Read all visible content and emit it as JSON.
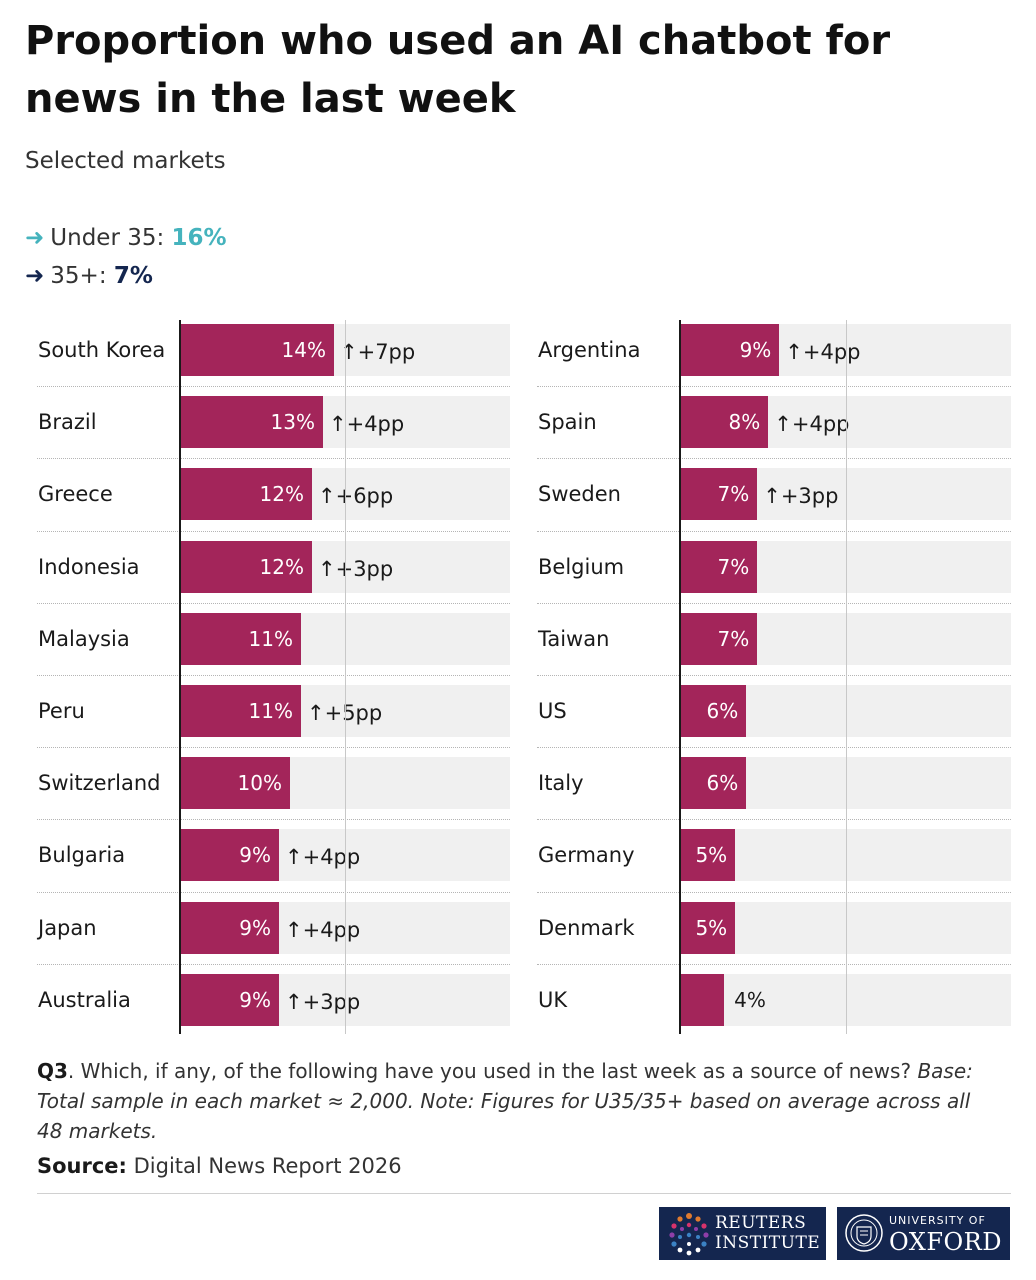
{
  "title": "Proportion who used an AI chatbot for news in the last week",
  "subtitle": "Selected markets",
  "stats": [
    {
      "arrow": "➜",
      "label": "Under 35: ",
      "value": "16%",
      "color": "#45b3bd"
    },
    {
      "arrow": "➜",
      "label": "35+: ",
      "value": "7%",
      "color": "#14264f"
    }
  ],
  "colors": {
    "bar": "#a3255a",
    "track": "#f0f0f0",
    "u35": "#45b3bd",
    "o35": "#14264f",
    "logo_bg": "#14264f"
  },
  "chart_data": {
    "type": "bar",
    "orientation": "horizontal",
    "unit": "%",
    "xlim": [
      0,
      30
    ],
    "gridlines": [
      15
    ],
    "panels": [
      {
        "rows": [
          {
            "country": "South Korea",
            "value": 14,
            "label": "14%",
            "change": "↑+7pp"
          },
          {
            "country": "Brazil",
            "value": 13,
            "label": "13%",
            "change": "↑+4pp"
          },
          {
            "country": "Greece",
            "value": 12,
            "label": "12%",
            "change": "↑+6pp"
          },
          {
            "country": "Indonesia",
            "value": 12,
            "label": "12%",
            "change": "↑+3pp"
          },
          {
            "country": "Malaysia",
            "value": 11,
            "label": "11%",
            "change": ""
          },
          {
            "country": "Peru",
            "value": 11,
            "label": "11%",
            "change": "↑+5pp"
          },
          {
            "country": "Switzerland",
            "value": 10,
            "label": "10%",
            "change": ""
          },
          {
            "country": "Bulgaria",
            "value": 9,
            "label": "9%",
            "change": "↑+4pp"
          },
          {
            "country": "Japan",
            "value": 9,
            "label": "9%",
            "change": "↑+4pp"
          },
          {
            "country": "Australia",
            "value": 9,
            "label": "9%",
            "change": "↑+3pp"
          }
        ]
      },
      {
        "rows": [
          {
            "country": "Argentina",
            "value": 9,
            "label": "9%",
            "change": "↑+4pp"
          },
          {
            "country": "Spain",
            "value": 8,
            "label": "8%",
            "change": "↑+4pp"
          },
          {
            "country": "Sweden",
            "value": 7,
            "label": "7%",
            "change": "↑+3pp"
          },
          {
            "country": "Belgium",
            "value": 7,
            "label": "7%",
            "change": ""
          },
          {
            "country": "Taiwan",
            "value": 7,
            "label": "7%",
            "change": ""
          },
          {
            "country": "US",
            "value": 6,
            "label": "6%",
            "change": ""
          },
          {
            "country": "Italy",
            "value": 6,
            "label": "6%",
            "change": ""
          },
          {
            "country": "Germany",
            "value": 5,
            "label": "5%",
            "change": ""
          },
          {
            "country": "Denmark",
            "value": 5,
            "label": "5%",
            "change": ""
          },
          {
            "country": "UK",
            "value": 4,
            "label": "4%",
            "change": ""
          }
        ]
      }
    ]
  },
  "note": {
    "q": "Q3",
    "question": ". Which, if any, of the following have you used in the last week as a source of news? ",
    "base": "Base: Total sample in each market ≈ 2,000. Note: Figures for U35/35+ based on average across all 48 markets."
  },
  "source": {
    "label": "Source:",
    "text": " Digital News Report 2026"
  },
  "logos": {
    "reuters": {
      "line1": "REUTERS",
      "line2": "INSTITUTE"
    },
    "oxford": {
      "line1": "UNIVERSITY OF",
      "line2": "OXFORD"
    }
  }
}
